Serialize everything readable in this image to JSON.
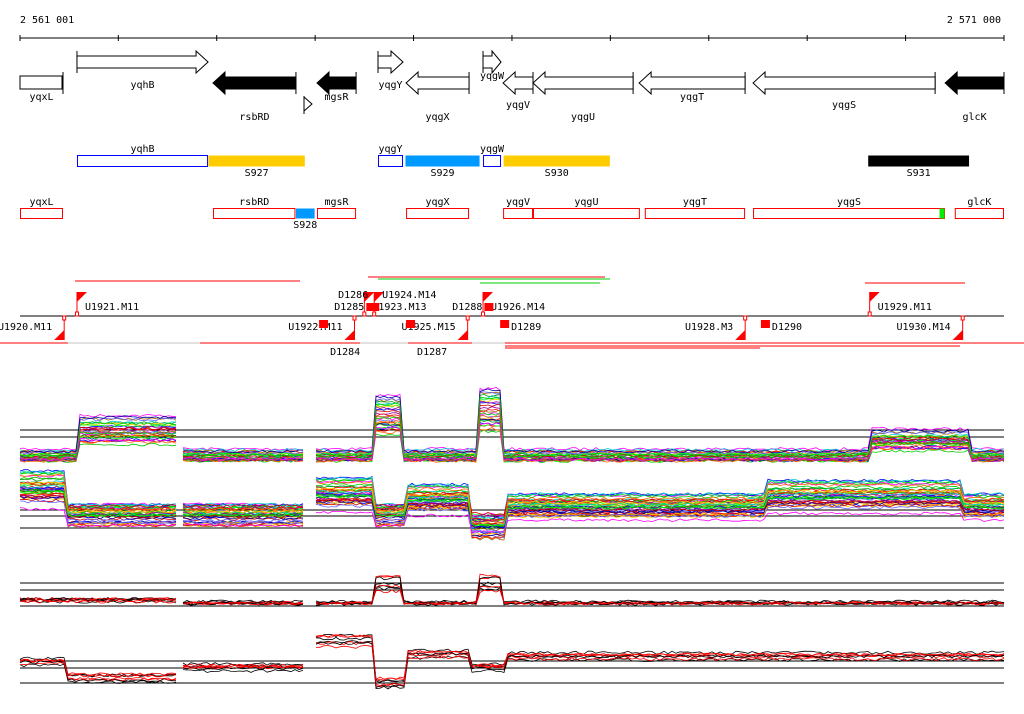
{
  "ruler": {
    "start_label": "2 561 001",
    "end_label": "2 571 000",
    "start": 2561001,
    "end": 2571000,
    "tick_step": 1000
  },
  "genes": [
    {
      "name": "yqxL",
      "start": 2561001,
      "end": 2561438,
      "strand": "none",
      "fill": "white"
    },
    {
      "name": "yqhB",
      "start": 2561580,
      "end": 2562912,
      "strand": "+",
      "fill": "white"
    },
    {
      "name": "rsbRD",
      "start": 2562962,
      "end": 2563805,
      "strand": "-",
      "fill": "black"
    },
    {
      "name": "",
      "start": 2563887,
      "end": 2563968,
      "strand": "+",
      "fill": "white"
    },
    {
      "name": "mgsR",
      "start": 2564019,
      "end": 2564416,
      "strand": "-",
      "fill": "black"
    },
    {
      "name": "yqgY",
      "start": 2564639,
      "end": 2564893,
      "strand": "+",
      "fill": "white"
    },
    {
      "name": "yqgX",
      "start": 2564924,
      "end": 2565564,
      "strand": "-",
      "fill": "white"
    },
    {
      "name": "yqgW",
      "start": 2565706,
      "end": 2565889,
      "strand": "+",
      "fill": "white"
    },
    {
      "name": "yqgV",
      "start": 2565910,
      "end": 2566214,
      "strand": "-",
      "fill": "white"
    },
    {
      "name": "yqgU",
      "start": 2566214,
      "end": 2567231,
      "strand": "-",
      "fill": "white"
    },
    {
      "name": "yqgT",
      "start": 2567292,
      "end": 2568369,
      "strand": "-",
      "fill": "white"
    },
    {
      "name": "yqgS",
      "start": 2568450,
      "end": 2570300,
      "strand": "-",
      "fill": "white"
    },
    {
      "name": "glcK",
      "start": 2570402,
      "end": 2571000,
      "strand": "-",
      "fill": "black"
    }
  ],
  "segments_row1": [
    {
      "name": "yqhB",
      "start": 2561580,
      "end": 2562912,
      "color": "#0000ff",
      "filled": false,
      "label_pos": "above"
    },
    {
      "name": "S927",
      "start": 2562912,
      "end": 2563900,
      "color": "#ffcc00",
      "filled": true,
      "label_pos": "below"
    },
    {
      "name": "yqgY",
      "start": 2564639,
      "end": 2564893,
      "color": "#0000ff",
      "filled": false,
      "label_pos": "above"
    },
    {
      "name": "S929",
      "start": 2564913,
      "end": 2565676,
      "color": "#0099ff",
      "filled": true,
      "label_pos": "below"
    },
    {
      "name": "yqgW",
      "start": 2565706,
      "end": 2565889,
      "color": "#0000ff",
      "filled": false,
      "label_pos": "above"
    },
    {
      "name": "S930",
      "start": 2565910,
      "end": 2567000,
      "color": "#ffcc00",
      "filled": true,
      "label_pos": "below"
    },
    {
      "name": "S931",
      "start": 2569615,
      "end": 2570650,
      "color": "#000000",
      "filled": true,
      "label_pos": "below"
    }
  ],
  "segments_row2": [
    {
      "name": "yqxL",
      "start": 2561001,
      "end": 2561438,
      "color": "#ff0000",
      "filled": false,
      "label_pos": "above"
    },
    {
      "name": "rsbRD",
      "start": 2562962,
      "end": 2563800,
      "color": "#ff0000",
      "filled": false,
      "label_pos": "above"
    },
    {
      "name": "S928",
      "start": 2563800,
      "end": 2564000,
      "color": "#0099ff",
      "filled": true,
      "label_pos": "below"
    },
    {
      "name": "mgsR",
      "start": 2564019,
      "end": 2564416,
      "color": "#ff0000",
      "filled": false,
      "label_pos": "above"
    },
    {
      "name": "yqgX",
      "start": 2564924,
      "end": 2565564,
      "color": "#ff0000",
      "filled": false,
      "label_pos": "above"
    },
    {
      "name": "yqgV",
      "start": 2565910,
      "end": 2566214,
      "color": "#ff0000",
      "filled": false,
      "label_pos": "above"
    },
    {
      "name": "yqgU",
      "start": 2566214,
      "end": 2567300,
      "color": "#ff0000",
      "filled": false,
      "label_pos": "above"
    },
    {
      "name": "yqgT",
      "start": 2567350,
      "end": 2568369,
      "color": "#ff0000",
      "filled": false,
      "label_pos": "above"
    },
    {
      "name": "yqgS",
      "start": 2568450,
      "end": 2570400,
      "color": "#ff0000",
      "filled": false,
      "label_pos": "above"
    },
    {
      "name": "",
      "start": 2570340,
      "end": 2570400,
      "color": "#00ee00",
      "filled": true,
      "label_pos": "none"
    },
    {
      "name": "glcK",
      "start": 2570500,
      "end": 2571000,
      "color": "#ff0000",
      "filled": false,
      "label_pos": "above"
    }
  ],
  "transcription_units": [
    {
      "label": "U1920.M11",
      "pos": 2561450,
      "strand": "-"
    },
    {
      "label": "U1921.M11",
      "pos": 2561580,
      "strand": "+"
    },
    {
      "label": "U1922.M11",
      "pos": 2564400,
      "strand": "-"
    },
    {
      "label": "U1923.M13",
      "pos": 2564500,
      "strand": "+"
    },
    {
      "label": "U1924.M14",
      "pos": 2564600,
      "strand": "+"
    },
    {
      "label": "U1925.M15",
      "pos": 2565550,
      "strand": "-"
    },
    {
      "label": "U1926.M14",
      "pos": 2565706,
      "strand": "+"
    },
    {
      "label": "U1928.M3",
      "pos": 2568370,
      "strand": "-"
    },
    {
      "label": "U1929.M11",
      "pos": 2569635,
      "strand": "+"
    },
    {
      "label": "U1930.M14",
      "pos": 2570580,
      "strand": "-"
    }
  ],
  "downshifts": [
    {
      "label": "D1284",
      "pos": 2564040,
      "strand": "-"
    },
    {
      "label": "D1285",
      "pos": 2564520,
      "strand": "+"
    },
    {
      "label": "D1286",
      "pos": 2564560,
      "strand": "+"
    },
    {
      "label": "D1287",
      "pos": 2564924,
      "strand": "-"
    },
    {
      "label": "D1288",
      "pos": 2565720,
      "strand": "+"
    },
    {
      "label": "D1289",
      "pos": 2565880,
      "strand": "-"
    },
    {
      "label": "D1290",
      "pos": 2568530,
      "strand": "-"
    }
  ],
  "colors": {
    "accent": "#ff0000",
    "blue": "#0000ff",
    "orange": "#ffcc00",
    "lightblue": "#0099ff",
    "green": "#00ee00"
  }
}
